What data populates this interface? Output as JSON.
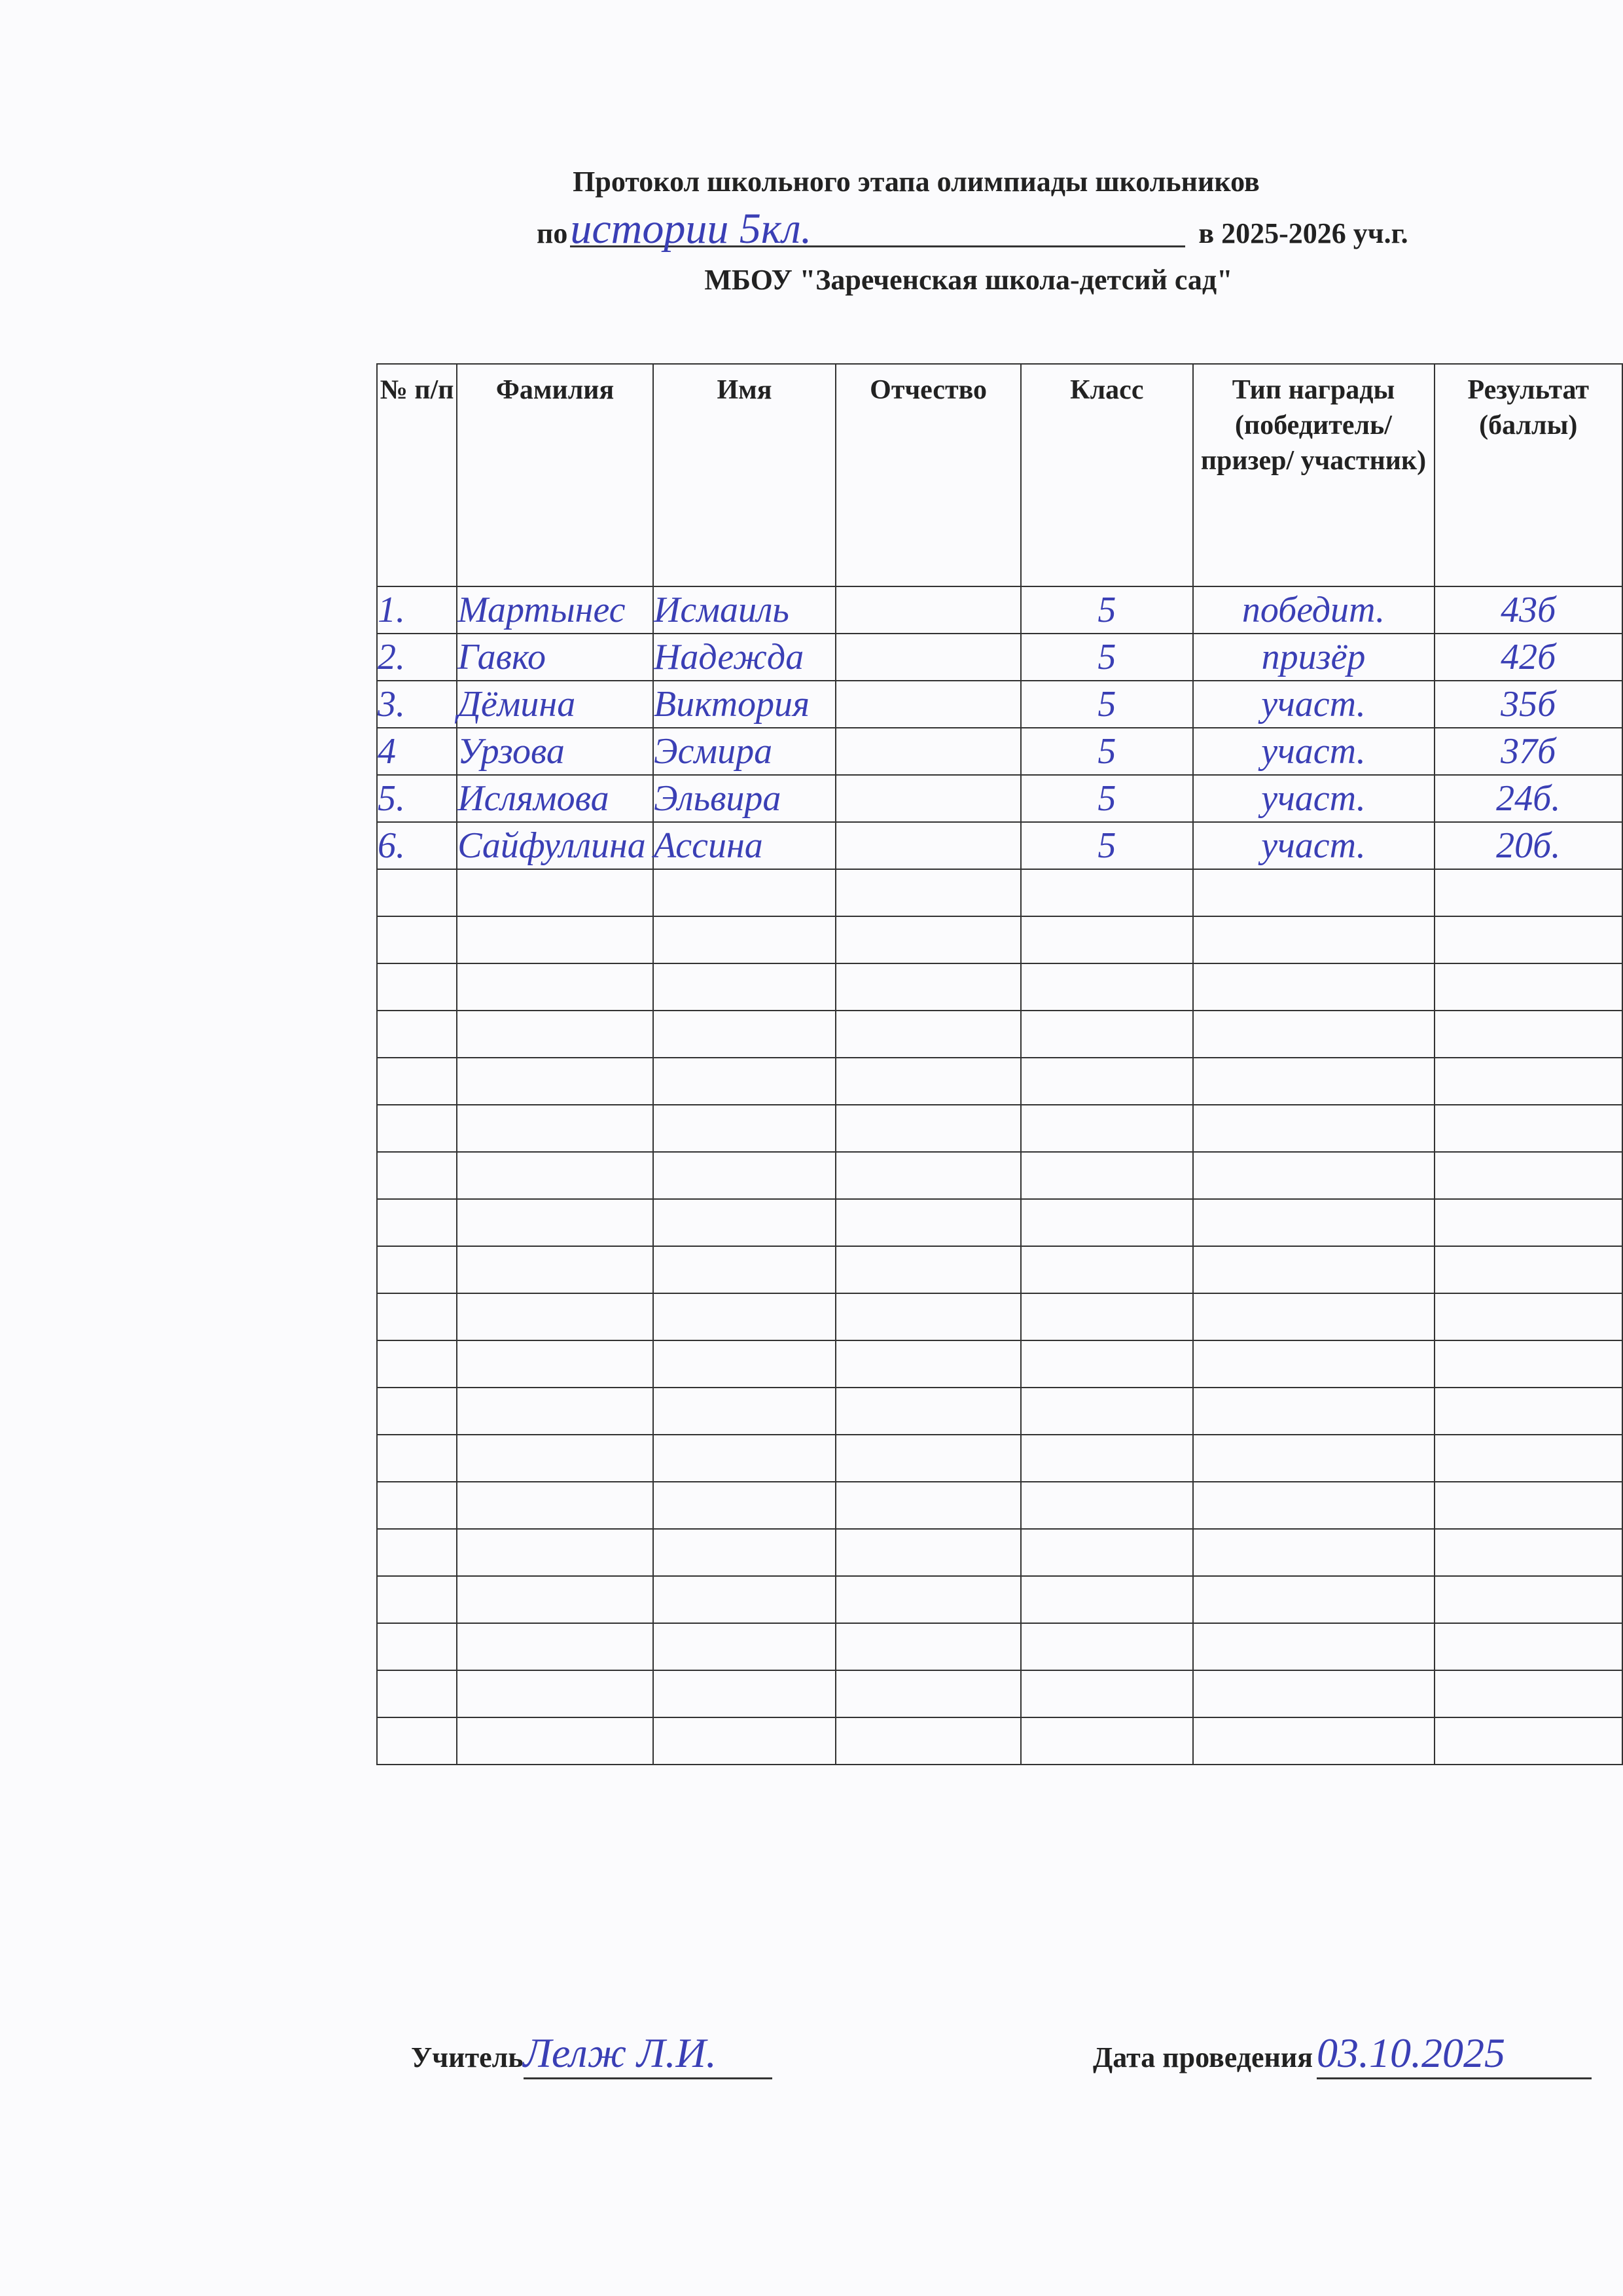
{
  "header": {
    "title": "Протокол школьного этапа олимпиады школьников",
    "subject_prefix": "по",
    "subject": "истории      5кл.",
    "year": "в 2025-2026 уч.г.",
    "school": "МБОУ \"Зареченская школа-детсий сад\""
  },
  "table": {
    "columns": [
      "№ п/п",
      "Фамилия",
      "Имя",
      "Отчество",
      "Класс",
      "Тип награды (победитель/ призер/ участник)",
      "Результат (баллы)"
    ],
    "rows": [
      {
        "n": "1.",
        "surname": "Мартынес",
        "name": "Исмаиль",
        "patronymic": "",
        "grade": "5",
        "award": "победит.",
        "score": "43б"
      },
      {
        "n": "2.",
        "surname": "Гавко",
        "name": "Надежда",
        "patronymic": "",
        "grade": "5",
        "award": "призёр",
        "score": "42б"
      },
      {
        "n": "3.",
        "surname": "Дёмина",
        "name": "Виктория",
        "patronymic": "",
        "grade": "5",
        "award": "участ.",
        "score": "35б"
      },
      {
        "n": "4",
        "surname": "Урзова",
        "name": "Эсмира",
        "patronymic": "",
        "grade": "5",
        "award": "участ.",
        "score": "37б"
      },
      {
        "n": "5.",
        "surname": "Ислямова",
        "name": "Эльвира",
        "patronymic": "",
        "grade": "5",
        "award": "участ.",
        "score": "24б."
      },
      {
        "n": "6.",
        "surname": "Сайфуллина",
        "name": "Ассина",
        "patronymic": "",
        "grade": "5",
        "award": "участ.",
        "score": "20б."
      }
    ],
    "empty_rows": 19
  },
  "footer": {
    "teacher_label": "Учитель",
    "teacher_signature": "Лелж Л.И.",
    "date_label": "Дата проведения",
    "date": "03.10.2025"
  },
  "colors": {
    "ink": "#3a3fb5",
    "print": "#222222"
  }
}
